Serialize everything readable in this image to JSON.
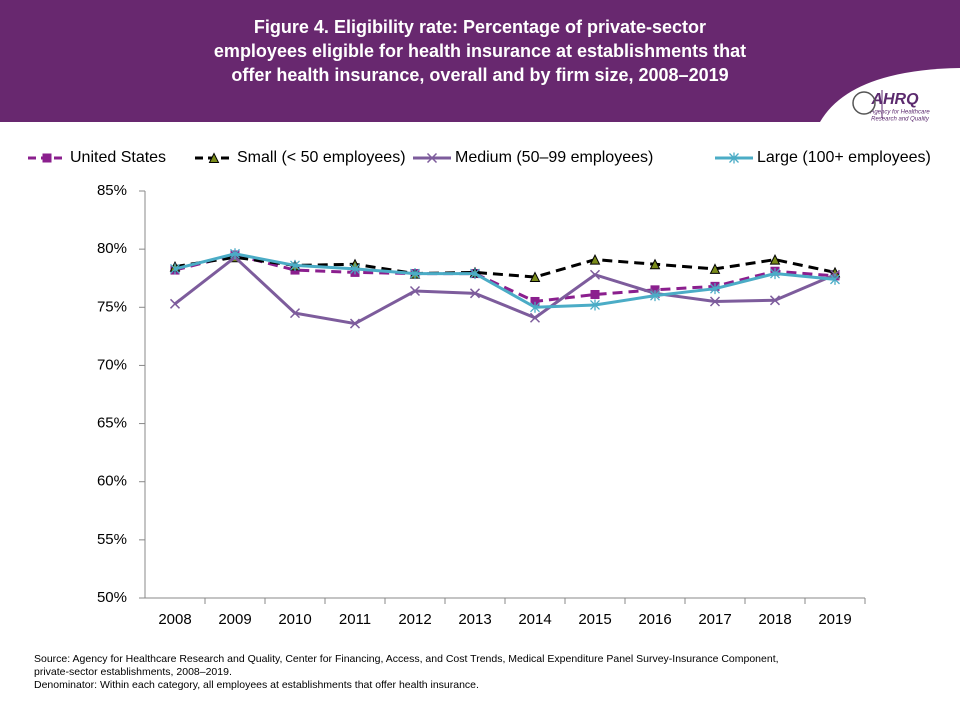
{
  "chart_data": {
    "type": "line",
    "title": "Figure 4. Eligibility rate: Percentage of private-sector employees eligible for health insurance at establishments that offer health insurance, overall and by firm size, 2008–2019",
    "categories": [
      "2008",
      "2009",
      "2010",
      "2011",
      "2012",
      "2013",
      "2014",
      "2015",
      "2016",
      "2017",
      "2018",
      "2019"
    ],
    "series": [
      {
        "name": "United States",
        "color": "#8b1f8e",
        "dash": true,
        "marker": "square",
        "values": [
          78.2,
          79.5,
          78.2,
          78.0,
          77.9,
          77.9,
          75.5,
          76.1,
          76.5,
          76.8,
          78.1,
          77.7
        ]
      },
      {
        "name": "Small (< 50 employees)",
        "color": "#000000",
        "dash": true,
        "marker": "triangle",
        "values": [
          78.5,
          79.3,
          78.6,
          78.7,
          77.9,
          78.0,
          77.6,
          79.1,
          78.7,
          78.3,
          79.1,
          78.0
        ]
      },
      {
        "name": "Medium (50–99 employees)",
        "color": "#7d5c9c",
        "dash": false,
        "marker": "x",
        "values": [
          75.3,
          79.3,
          74.5,
          73.6,
          76.4,
          76.2,
          74.1,
          77.8,
          76.2,
          75.5,
          75.6,
          77.8
        ]
      },
      {
        "name": "Large (100+ employees)",
        "color": "#4bacc6",
        "dash": false,
        "marker": "star",
        "values": [
          78.3,
          79.6,
          78.6,
          78.3,
          77.9,
          77.9,
          75.0,
          75.2,
          76.0,
          76.6,
          77.9,
          77.4
        ]
      }
    ],
    "ylim": [
      50,
      85
    ],
    "yticks": [
      {
        "value": 50,
        "label": "50%"
      },
      {
        "value": 55,
        "label": "55%"
      },
      {
        "value": 60,
        "label": "60%"
      },
      {
        "value": 65,
        "label": "65%"
      },
      {
        "value": 70,
        "label": "70%"
      },
      {
        "value": 75,
        "label": "75%"
      },
      {
        "value": 80,
        "label": "80%"
      },
      {
        "value": 85,
        "label": "85%"
      }
    ],
    "grid": false,
    "notes": [
      "Source: Agency for Healthcare Research and Quality, Center for Financing, Access, and Cost Trends, Medical Expenditure Panel Survey-Insurance Component,",
      "private-sector establishments, 2008–2019.",
      "Denominator: Within each category, all employees at establishments that offer health insurance."
    ]
  },
  "logo": {
    "name": "AHRQ",
    "tagline": [
      "Agency for Healthcare",
      "Research and Quality"
    ]
  }
}
